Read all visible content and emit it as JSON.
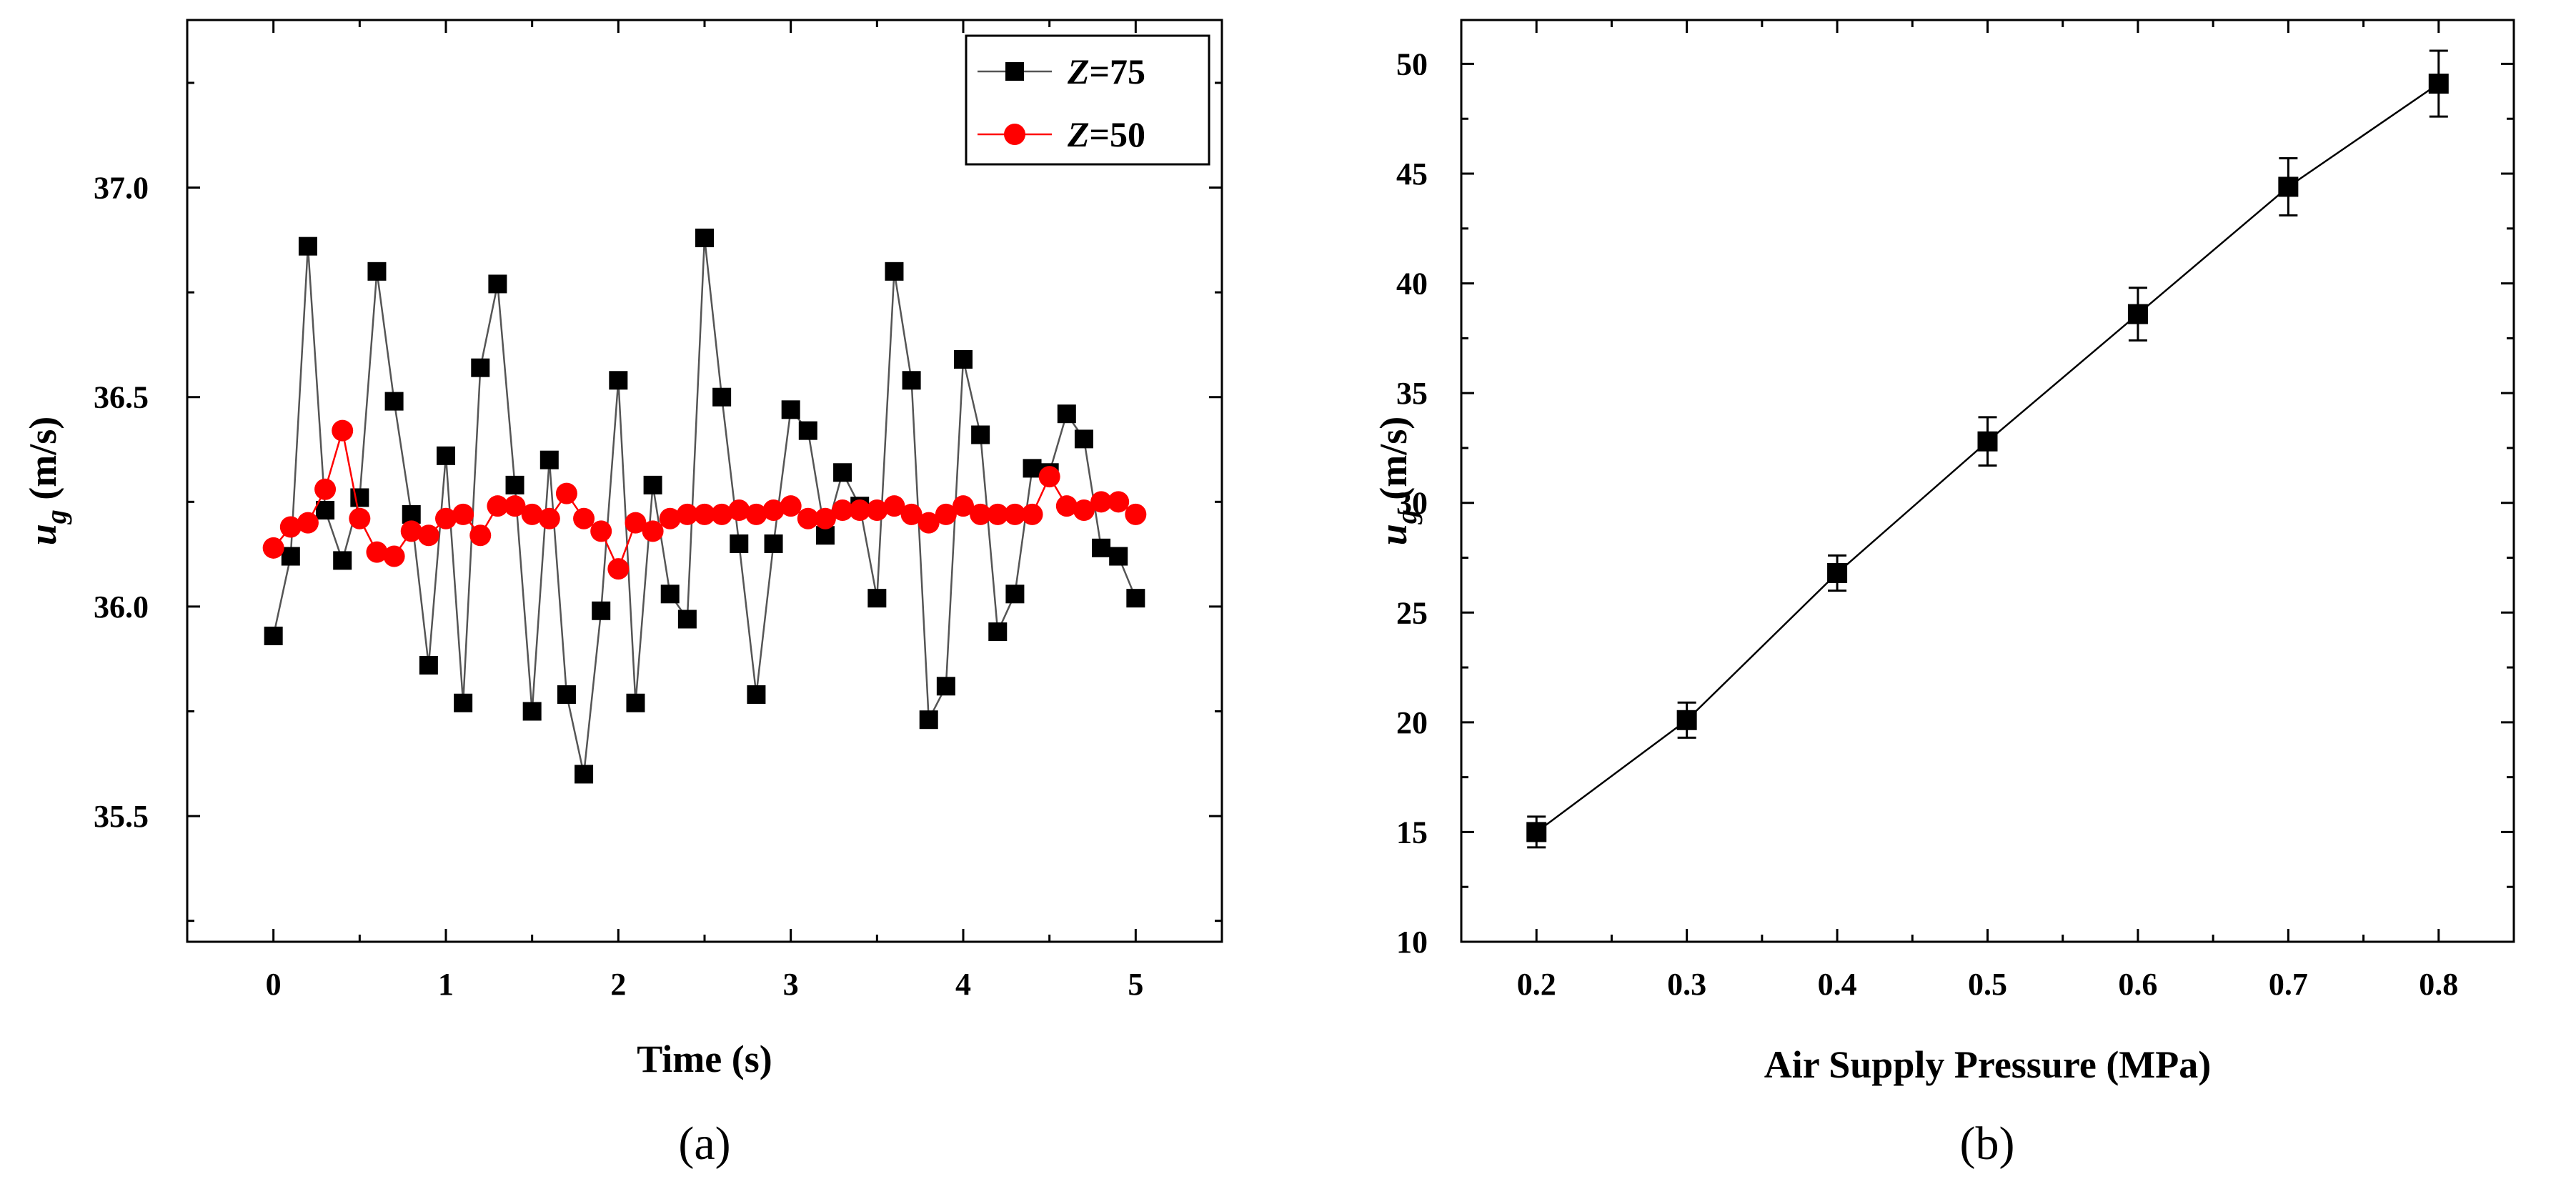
{
  "chart_data": [
    {
      "type": "line",
      "panel_label": "(a)",
      "xlabel": "Time (s)",
      "ylabel": {
        "main": "u",
        "sub": "g",
        "unit": " (m/s)"
      },
      "xlim": [
        -0.5,
        5.5
      ],
      "ylim": [
        35.2,
        37.4
      ],
      "xticks": [
        0,
        1,
        2,
        3,
        4,
        5
      ],
      "xtick_labels": [
        "0",
        "1",
        "2",
        "3",
        "4",
        "5"
      ],
      "yticks": [
        35.5,
        36.0,
        36.5,
        37.0
      ],
      "ytick_labels": [
        "35.5",
        "36.0",
        "36.5",
        "37.0"
      ],
      "grid": false,
      "legend_position": "top-right",
      "x": [
        0,
        0.1,
        0.2,
        0.3,
        0.4,
        0.5,
        0.6,
        0.7,
        0.8,
        0.9,
        1.0,
        1.1,
        1.2,
        1.3,
        1.4,
        1.5,
        1.6,
        1.7,
        1.8,
        1.9,
        2.0,
        2.1,
        2.2,
        2.3,
        2.4,
        2.5,
        2.6,
        2.7,
        2.8,
        2.9,
        3.0,
        3.1,
        3.2,
        3.3,
        3.4,
        3.5,
        3.6,
        3.7,
        3.8,
        3.9,
        4.0,
        4.1,
        4.2,
        4.3,
        4.4,
        4.5,
        4.6,
        4.7,
        4.8,
        4.9,
        5.0
      ],
      "series": [
        {
          "name_italic": "Z",
          "name_rest": "=75",
          "color": "#000000",
          "line_color": "#555555",
          "marker": "square",
          "values": [
            35.93,
            36.12,
            36.86,
            36.23,
            36.11,
            36.26,
            36.8,
            36.49,
            36.22,
            35.86,
            36.36,
            35.77,
            36.57,
            36.77,
            36.29,
            35.75,
            36.35,
            35.79,
            35.6,
            35.99,
            36.54,
            35.77,
            36.29,
            36.03,
            35.97,
            36.88,
            36.5,
            36.15,
            35.79,
            36.15,
            36.47,
            36.42,
            36.17,
            36.32,
            36.24,
            36.02,
            36.8,
            36.54,
            35.73,
            35.81,
            36.59,
            36.41,
            35.94,
            36.03,
            36.33,
            36.32,
            36.46,
            36.4,
            36.14,
            36.12,
            36.02
          ]
        },
        {
          "name_italic": "Z",
          "name_rest": "=50",
          "color": "#ff0000",
          "line_color": "#ff0000",
          "marker": "circle",
          "values": [
            36.14,
            36.19,
            36.2,
            36.28,
            36.42,
            36.21,
            36.13,
            36.12,
            36.18,
            36.17,
            36.21,
            36.22,
            36.17,
            36.24,
            36.24,
            36.22,
            36.21,
            36.27,
            36.21,
            36.18,
            36.09,
            36.2,
            36.18,
            36.21,
            36.22,
            36.22,
            36.22,
            36.23,
            36.22,
            36.23,
            36.24,
            36.21,
            36.21,
            36.23,
            36.23,
            36.23,
            36.24,
            36.22,
            36.2,
            36.22,
            36.24,
            36.22,
            36.22,
            36.22,
            36.22,
            36.31,
            36.24,
            36.23,
            36.25,
            36.25,
            36.22
          ]
        }
      ]
    },
    {
      "type": "line",
      "panel_label": "(b)",
      "xlabel": "Air Supply Pressure (MPa)",
      "ylabel": {
        "main": "u",
        "sub": "g",
        "unit": " (m/s)"
      },
      "xlim": [
        0.15,
        0.85
      ],
      "ylim": [
        10,
        52
      ],
      "xticks": [
        0.2,
        0.3,
        0.4,
        0.5,
        0.6,
        0.7,
        0.8
      ],
      "xtick_labels": [
        "0.2",
        "0.3",
        "0.4",
        "0.5",
        "0.6",
        "0.7",
        "0.8"
      ],
      "yticks": [
        10,
        15,
        20,
        25,
        30,
        35,
        40,
        45,
        50
      ],
      "ytick_labels": [
        "10",
        "15",
        "20",
        "25",
        "30",
        "35",
        "40",
        "45",
        "50"
      ],
      "grid": false,
      "x": [
        0.2,
        0.3,
        0.4,
        0.5,
        0.6,
        0.7,
        0.8
      ],
      "series": [
        {
          "name": "ug",
          "color": "#000000",
          "marker": "square",
          "values": [
            15.0,
            20.1,
            26.8,
            32.8,
            38.6,
            44.4,
            49.1
          ],
          "error": [
            0.7,
            0.8,
            0.8,
            1.1,
            1.2,
            1.3,
            1.5
          ]
        }
      ]
    }
  ]
}
